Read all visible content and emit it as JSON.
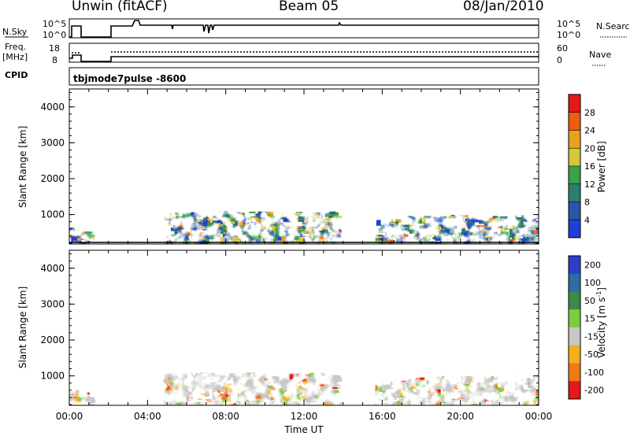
{
  "header": {
    "left": "Unwin (fitACF)",
    "center": "Beam 05",
    "right": "08/Jan/2010"
  },
  "strips": {
    "nsky_label": "N.Sky",
    "nsky_ticks": [
      "10^5",
      "10^0"
    ],
    "nsearch_label": "N.Search",
    "nsearch_ticks": [
      "10^5",
      "10^0"
    ],
    "freq_label_1": "Freq.",
    "freq_label_2": "[MHz]",
    "freq_ticks": [
      "18",
      "8"
    ],
    "nave_label": "Nave",
    "nave_ticks": [
      "60",
      "0"
    ],
    "cpid_label": "CPID",
    "cpid_value": "tbjmode7pulse  -8600"
  },
  "chart_data": [
    {
      "type": "heatmap",
      "title": "",
      "ylabel": "Slant Range [km]",
      "xlabel": "",
      "y_ticks": [
        "1000",
        "2000",
        "3000",
        "4000"
      ],
      "ylim": [
        180,
        4500
      ],
      "xlim": [
        0,
        24
      ],
      "colorbar": {
        "label": "Power [dB]",
        "ticks": [
          "4",
          "8",
          "12",
          "16",
          "20",
          "24",
          "28"
        ],
        "colors": [
          "#1f3fd6",
          "#2a55a8",
          "#2f7d6e",
          "#37a24a",
          "#d2c838",
          "#e9a21c",
          "#ee5c14",
          "#e41818"
        ]
      },
      "echo_regions": [
        {
          "t0": 0.0,
          "t1": 0.9,
          "r0": 180,
          "r1": 650
        },
        {
          "t0": 4.8,
          "t1": 10.4,
          "r0": 180,
          "r1": 1100
        },
        {
          "t0": 10.4,
          "t1": 13.6,
          "r0": 180,
          "r1": 1100
        },
        {
          "t0": 15.6,
          "t1": 17.0,
          "r0": 250,
          "r1": 900
        },
        {
          "t0": 17.2,
          "t1": 24.0,
          "r0": 200,
          "r1": 1000
        }
      ]
    },
    {
      "type": "heatmap",
      "title": "",
      "ylabel": "Slant Range [km]",
      "xlabel": "Time UT",
      "x_ticks": [
        "00:00",
        "04:00",
        "08:00",
        "12:00",
        "16:00",
        "20:00",
        "00:00"
      ],
      "y_ticks": [
        "1000",
        "2000",
        "3000",
        "4000"
      ],
      "ylim": [
        180,
        4500
      ],
      "xlim": [
        0,
        24
      ],
      "colorbar": {
        "label": "Velocity [m s",
        "label_sup": "-1",
        "label_end": "]",
        "ticks": [
          "200",
          "100",
          "50",
          "15",
          "-15",
          "-50",
          "-100",
          "-200"
        ],
        "colors": [
          "#2b3fc8",
          "#2a6fa0",
          "#3c8a4a",
          "#7ccc3c",
          "#c8c8c8",
          "#f2b01c",
          "#ef7a14",
          "#e41818"
        ]
      },
      "echo_regions": [
        {
          "t0": 0.0,
          "t1": 0.9,
          "r0": 180,
          "r1": 650
        },
        {
          "t0": 4.8,
          "t1": 13.6,
          "r0": 180,
          "r1": 1100
        },
        {
          "t0": 15.6,
          "t1": 17.0,
          "r0": 250,
          "r1": 900
        },
        {
          "t0": 17.2,
          "t1": 24.0,
          "r0": 200,
          "r1": 1000
        }
      ]
    }
  ]
}
